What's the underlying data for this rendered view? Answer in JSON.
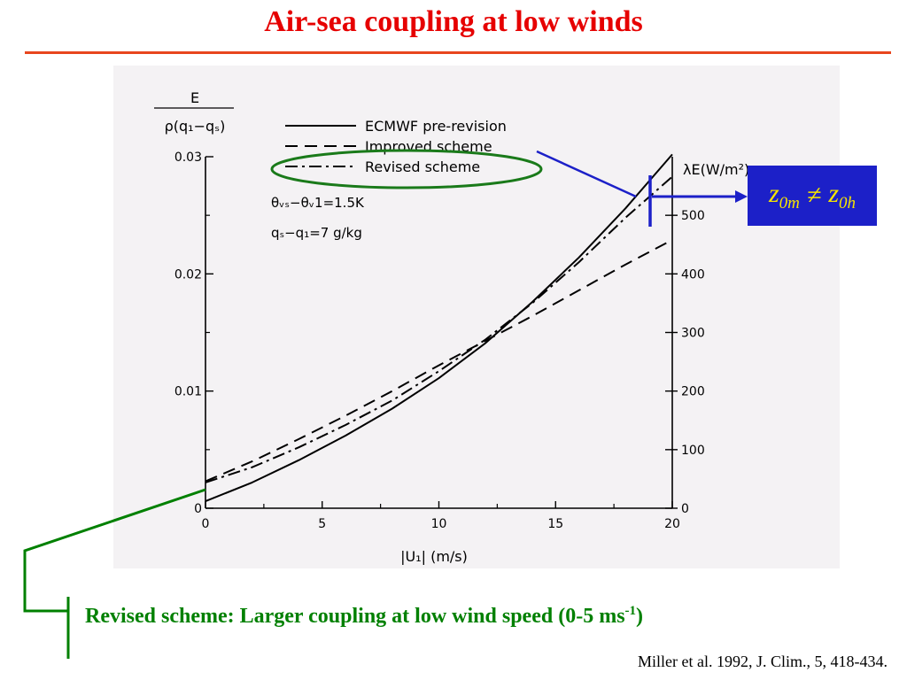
{
  "slide": {
    "title": "Air-sea coupling at low winds",
    "caption_main": "Revised scheme: Larger coupling at low wind speed (0-5 ms",
    "caption_sup": "-1",
    "caption_end": ")",
    "citation": "Miller et al. 1992, J. Clim., 5, 418-434.",
    "annotation": {
      "z1": "z",
      "z1_sub": "0m",
      "neq": "≠",
      "z2": "z",
      "z2_sub": "0h"
    }
  },
  "colors": {
    "title": "#e60000",
    "caption": "#008000",
    "annotation_box": "#1c20c8",
    "annotation_text": "#f5e400"
  },
  "chart_data": {
    "type": "line",
    "ylabel_top": "E",
    "ylabel_bottom": "ρ(q₁−qₛ)",
    "y2label": "λE(W/m²)",
    "xlabel": "|U₁| (m/s)",
    "xlim": [
      0,
      20
    ],
    "ylim": [
      0,
      0.03
    ],
    "y2lim": [
      0,
      600
    ],
    "x_ticks": [
      0,
      5,
      10,
      15,
      20
    ],
    "x_tick_labels": [
      "0",
      "5",
      "10",
      "15",
      "20"
    ],
    "y_ticks": [
      0,
      0.01,
      0.02,
      0.03
    ],
    "y_tick_labels": [
      "0",
      "0.01",
      "0.02",
      "0.03"
    ],
    "y2_ticks": [
      0,
      100,
      200,
      300,
      400,
      500
    ],
    "y2_tick_labels": [
      "0",
      "100",
      "200",
      "300",
      "400",
      "500"
    ],
    "annotations": [
      "θᵥₛ−θᵥ1=1.5K",
      "qₛ−q₁=7 g/kg"
    ],
    "legend_position": "top-center",
    "x": [
      0,
      2,
      4,
      6,
      8,
      10,
      12,
      14,
      16,
      18,
      20
    ],
    "series": [
      {
        "name": "ECMWF pre-revision",
        "style": "solid",
        "values": [
          0.0006,
          0.0022,
          0.0041,
          0.0062,
          0.0085,
          0.0111,
          0.0141,
          0.0176,
          0.0214,
          0.0256,
          0.0302
        ]
      },
      {
        "name": "Improved scheme",
        "style": "dash",
        "values": [
          0.0023,
          0.004,
          0.0059,
          0.0079,
          0.01,
          0.0122,
          0.0143,
          0.0164,
          0.0186,
          0.0208,
          0.0229
        ]
      },
      {
        "name": "Revised scheme",
        "style": "dashdot",
        "values": [
          0.0022,
          0.0035,
          0.0052,
          0.0071,
          0.0092,
          0.0117,
          0.0144,
          0.0175,
          0.021,
          0.0248,
          0.0283
        ]
      }
    ]
  }
}
